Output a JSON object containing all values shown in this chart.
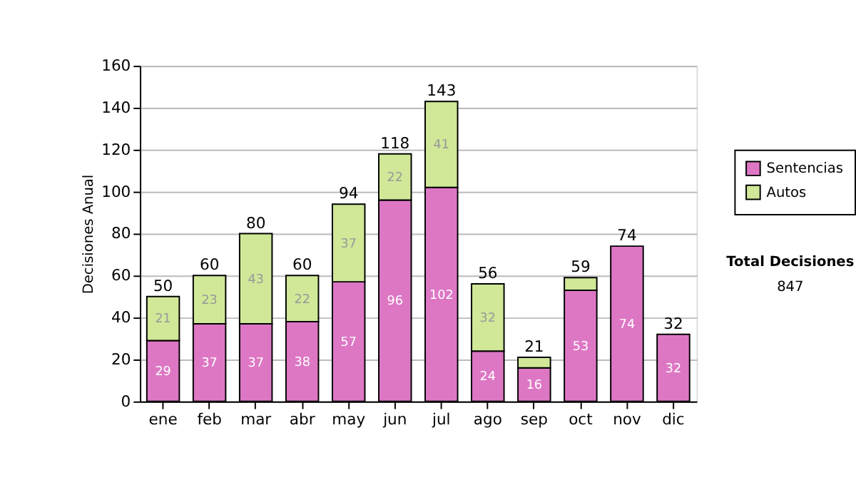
{
  "chart_data": {
    "type": "bar",
    "stacked": true,
    "ylabel": "Decisiones Anual",
    "categories": [
      "ene",
      "feb",
      "mar",
      "abr",
      "may",
      "jun",
      "jul",
      "ago",
      "sep",
      "oct",
      "nov",
      "dic"
    ],
    "series": [
      {
        "name": "Sentencias",
        "color": "#dd77c4",
        "values": [
          29,
          37,
          37,
          38,
          57,
          96,
          102,
          24,
          16,
          53,
          74,
          32
        ],
        "value_labels": [
          "29",
          "37",
          "37",
          "38",
          "57",
          "96",
          "102",
          "24",
          "16",
          "53",
          "74",
          "32"
        ]
      },
      {
        "name": "Autos",
        "color": "#d0e898",
        "values": [
          21,
          23,
          43,
          22,
          37,
          22,
          41,
          32,
          5,
          6,
          null,
          null
        ],
        "value_labels": [
          "21",
          "23",
          "43",
          "22",
          "37",
          "22",
          "41",
          "32",
          null,
          null,
          null,
          null
        ]
      }
    ],
    "totals": [
      "50",
      "60",
      "80",
      "60",
      "94",
      "118",
      "143",
      "56",
      "21",
      "59",
      "74",
      "32"
    ],
    "ylim": [
      0,
      160
    ],
    "yticks": [
      0,
      20,
      40,
      60,
      80,
      100,
      120,
      140,
      160
    ],
    "grid": "y",
    "legend": "right",
    "annotations": [
      "Total Decisiones",
      "847"
    ]
  }
}
